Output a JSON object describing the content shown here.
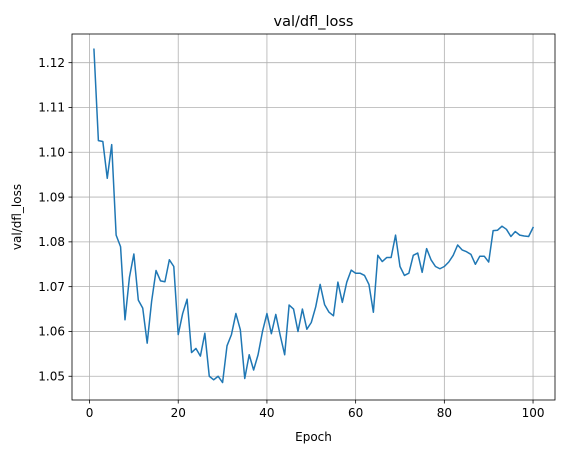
{
  "chart_data": {
    "type": "line",
    "title": "val/dfl_loss",
    "xlabel": "Epoch",
    "ylabel": "val/dfl_loss",
    "xlim": [
      -3.95,
      104.95
    ],
    "ylim": [
      1.0447,
      1.1264
    ],
    "xticks": [
      0,
      20,
      40,
      60,
      80,
      100
    ],
    "yticks": [
      1.05,
      1.06,
      1.07,
      1.08,
      1.09,
      1.1,
      1.11,
      1.12
    ],
    "ytick_labels": [
      "1.05",
      "1.06",
      "1.07",
      "1.08",
      "1.09",
      "1.10",
      "1.11",
      "1.12"
    ],
    "grid": true,
    "line_color": "#1f77b4",
    "series": [
      {
        "x": [
          1,
          2,
          3,
          4,
          5,
          6,
          7,
          8,
          9,
          10,
          11,
          12,
          13,
          14,
          15,
          16,
          17,
          18,
          19,
          20,
          21,
          22,
          23,
          24,
          25,
          26,
          27,
          28,
          29,
          30,
          31,
          32,
          33,
          34,
          35,
          36,
          37,
          38,
          39,
          40,
          41,
          42,
          43,
          44,
          45,
          46,
          47,
          48,
          49,
          50,
          51,
          52,
          53,
          54,
          55,
          56,
          57,
          58,
          59,
          60,
          61,
          62,
          63,
          64,
          65,
          66,
          67,
          68,
          69,
          70,
          71,
          72,
          73,
          74,
          75,
          76,
          77,
          78,
          79,
          80,
          81,
          82,
          83,
          84,
          85,
          86,
          87,
          88,
          89,
          90,
          91,
          92,
          93,
          94,
          95,
          96,
          97,
          98,
          99,
          100
        ],
        "values": [
          1.123,
          1.1026,
          1.1024,
          1.0942,
          1.1017,
          1.0815,
          1.0789,
          1.0626,
          1.0721,
          1.0773,
          1.067,
          1.0652,
          1.0574,
          1.0667,
          1.0736,
          1.0713,
          1.0711,
          1.076,
          1.0745,
          1.0593,
          1.064,
          1.0672,
          1.0553,
          1.0562,
          1.0545,
          1.0596,
          1.05,
          1.0492,
          1.05,
          1.0486,
          1.0568,
          1.0593,
          1.064,
          1.0604,
          1.0495,
          1.0548,
          1.0514,
          1.0548,
          1.06,
          1.064,
          1.0595,
          1.0638,
          1.0591,
          1.0548,
          1.0659,
          1.065,
          1.06,
          1.065,
          1.0605,
          1.062,
          1.0655,
          1.0705,
          1.066,
          1.0643,
          1.0635,
          1.071,
          1.0665,
          1.071,
          1.0737,
          1.073,
          1.073,
          1.0725,
          1.0705,
          1.0643,
          1.077,
          1.0756,
          1.0765,
          1.0765,
          1.0815,
          1.0745,
          1.0725,
          1.073,
          1.077,
          1.0775,
          1.0732,
          1.0785,
          1.076,
          1.0745,
          1.074,
          1.0745,
          1.0755,
          1.077,
          1.0793,
          1.0782,
          1.0778,
          1.0772,
          1.075,
          1.0768,
          1.0768,
          1.0755,
          1.0825,
          1.0826,
          1.0835,
          1.0828,
          1.0812,
          1.0823,
          1.0815,
          1.0813,
          1.0812,
          1.0832
        ]
      }
    ]
  }
}
